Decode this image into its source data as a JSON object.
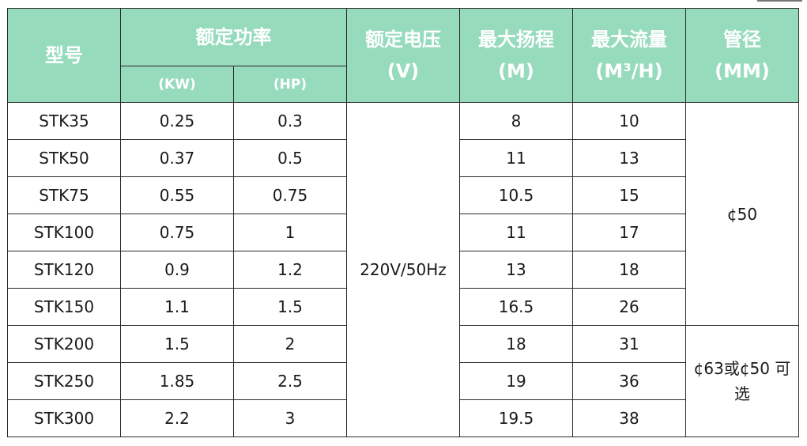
{
  "header": {
    "model": "型号",
    "power": "额定功率",
    "power_kw": "(KW)",
    "power_hp": "(HP)",
    "voltage": "额定电压",
    "voltage_unit": "(V)",
    "head": "最大扬程",
    "head_unit": "(M)",
    "flow": "最大流量",
    "flow_unit": "(M³/H)",
    "pipe": "管径",
    "pipe_unit": "(MM)"
  },
  "voltage_value": "220V/50Hz",
  "pipe_values": {
    "group1": "¢50",
    "group2_line1": "¢63或¢50",
    "group2_line2": "可选"
  },
  "rows": [
    {
      "model": "STK35",
      "kw": "0.25",
      "hp": "0.3",
      "head": "8",
      "flow": "10"
    },
    {
      "model": "STK50",
      "kw": "0.37",
      "hp": "0.5",
      "head": "11",
      "flow": "13"
    },
    {
      "model": "STK75",
      "kw": "0.55",
      "hp": "0.75",
      "head": "10.5",
      "flow": "15"
    },
    {
      "model": "STK100",
      "kw": "0.75",
      "hp": "1",
      "head": "11",
      "flow": "17"
    },
    {
      "model": "STK120",
      "kw": "0.9",
      "hp": "1.2",
      "head": "13",
      "flow": "18"
    },
    {
      "model": "STK150",
      "kw": "1.1",
      "hp": "1.5",
      "head": "16.5",
      "flow": "26"
    },
    {
      "model": "STK200",
      "kw": "1.5",
      "hp": "2",
      "head": "18",
      "flow": "31"
    },
    {
      "model": "STK250",
      "kw": "1.85",
      "hp": "2.5",
      "head": "19",
      "flow": "36"
    },
    {
      "model": "STK300",
      "kw": "2.2",
      "hp": "3",
      "head": "19.5",
      "flow": "38"
    }
  ],
  "colors": {
    "header_bg": "#97dbbd",
    "header_text": "#ffffff",
    "border": "#2b2b2b"
  }
}
